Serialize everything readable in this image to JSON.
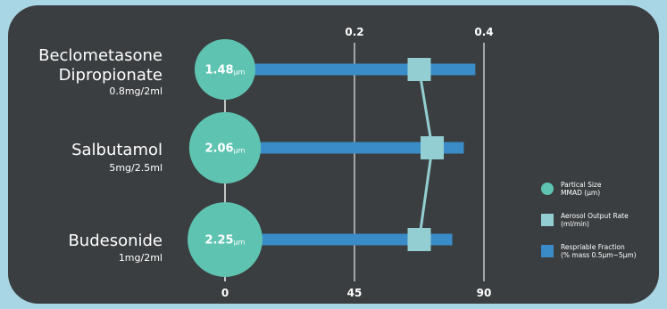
{
  "chart_data": {
    "type": "bar",
    "categories": [
      {
        "name_lines": [
          "Beclometasone",
          "Dipropionate"
        ],
        "dose": "0.8mg/2ml"
      },
      {
        "name_lines": [
          "Salbutamol"
        ],
        "dose": "5mg/2.5ml"
      },
      {
        "name_lines": [
          "Budesonide"
        ],
        "dose": "1mg/2ml"
      }
    ],
    "bottom_axis": {
      "range": [
        0,
        90
      ],
      "ticks": [
        "0",
        "45",
        "90"
      ]
    },
    "top_axis": {
      "range": [
        0,
        0.4
      ],
      "ticks": [
        "0.2",
        "0.4"
      ]
    },
    "series": [
      {
        "name": "Partical Size MMAD (µm)",
        "legend_lines": [
          "Partical Size",
          "MMAD (µm)"
        ],
        "kind": "circle",
        "values": [
          1.48,
          2.06,
          2.25
        ],
        "labels": [
          "1.48",
          "2.06",
          "2.25"
        ],
        "unit": "µm",
        "color": "#5ec4b1"
      },
      {
        "name": "Aerosol Output Rate (ml/min)",
        "legend_lines": [
          "Aerosol Output Rate",
          "(ml/min)"
        ],
        "kind": "square-line",
        "axis": "top",
        "values": [
          0.3,
          0.32,
          0.3
        ],
        "color": "#93cfd2"
      },
      {
        "name": "Respriable Fraction (% mass 0.5µm~5µm)",
        "legend_lines": [
          "Respriable Fraction",
          "(% mass 0.5µm~5µm)"
        ],
        "kind": "bar",
        "axis": "bottom",
        "values": [
          87,
          83,
          79
        ],
        "color": "#3a8cc8"
      }
    ]
  }
}
